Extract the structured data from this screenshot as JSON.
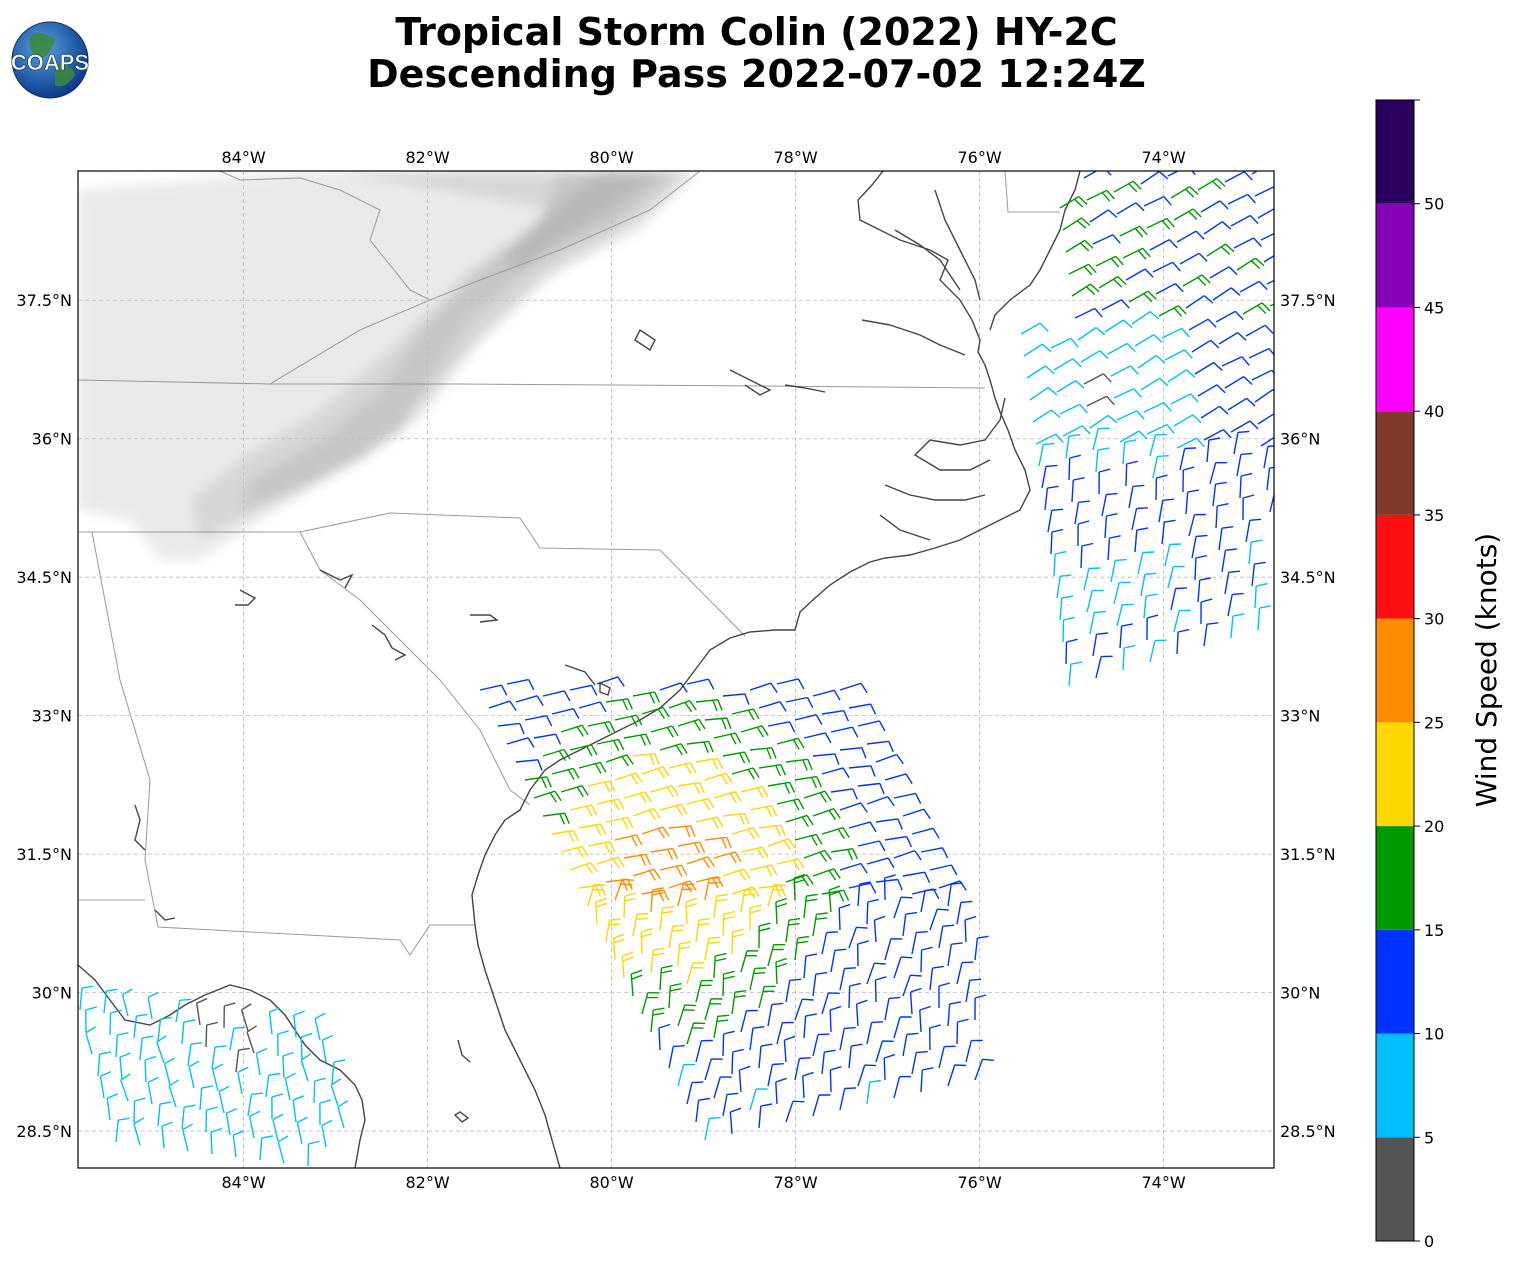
{
  "title": {
    "line1": "Tropical Storm Colin (2022) HY-2C",
    "line2": "Descending Pass 2022-07-02 12:24Z"
  },
  "logo": {
    "text": "COAPS",
    "icon": "globe-logo-icon"
  },
  "map": {
    "lon_range": [
      -85.8,
      -72.8
    ],
    "lat_range": [
      28.1,
      38.9
    ],
    "lon_ticks": [
      {
        "value": -84,
        "label": "84°W"
      },
      {
        "value": -82,
        "label": "82°W"
      },
      {
        "value": -80,
        "label": "80°W"
      },
      {
        "value": -78,
        "label": "78°W"
      },
      {
        "value": -76,
        "label": "76°W"
      },
      {
        "value": -74,
        "label": "74°W"
      }
    ],
    "lat_ticks": [
      {
        "value": 28.5,
        "label": "28.5°N"
      },
      {
        "value": 30,
        "label": "30°N"
      },
      {
        "value": 31.5,
        "label": "31.5°N"
      },
      {
        "value": 33,
        "label": "33°N"
      },
      {
        "value": 34.5,
        "label": "34.5°N"
      },
      {
        "value": 36,
        "label": "36°N"
      },
      {
        "value": 37.5,
        "label": "37.5°N"
      }
    ],
    "grid": true,
    "basemap": "grayscale-terrain",
    "colors": {
      "coastline": "#444444",
      "borders": "#999999",
      "grid": "#bbbbbb"
    }
  },
  "colorbar": {
    "label": "Wind Speed (knots)",
    "ticks": [
      "0",
      "5",
      "10",
      "15",
      "20",
      "25",
      "30",
      "35",
      "40",
      "45",
      "50"
    ],
    "colors": [
      "#555555",
      "#00bfff",
      "#0033ff",
      "#009900",
      "#ffd700",
      "#ff8c00",
      "#ff1010",
      "#803a2a",
      "#ff00ff",
      "#8800b8",
      "#2b0060"
    ]
  }
}
